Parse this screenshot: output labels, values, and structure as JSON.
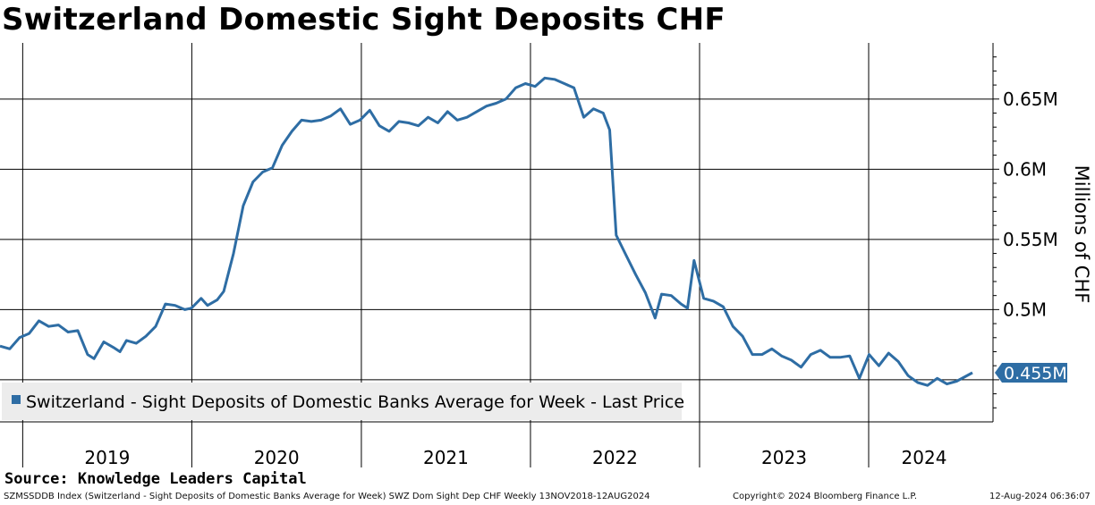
{
  "title": "Switzerland Domestic Sight Deposits CHF",
  "source_text": "Source: Knowledge Leaders Capital",
  "footer": {
    "ticker_desc": "SZMSSDDB Index (Switzerland - Sight Deposits of Domestic Banks Average for Week) SWZ Dom Sight Dep CHF  Weekly 13NOV2018-12AUG2024",
    "copyright": "Copyright© 2024 Bloomberg Finance L.P.",
    "timestamp": "12-Aug-2024 06:36:07"
  },
  "colors": {
    "line": "#2e6da4",
    "grid": "#000000",
    "legend_bg": "#ececec"
  },
  "chart_data": {
    "type": "line",
    "title": "Switzerland Domestic Sight Deposits CHF",
    "ylabel": "Millions of CHF",
    "xlabel": "",
    "x_range": [
      "2018-11-13",
      "2024-08-12"
    ],
    "ylim": [
      0.42,
      0.69
    ],
    "y_ticks": [
      {
        "value": 0.5,
        "label": "0.5M"
      },
      {
        "value": 0.55,
        "label": "0.55M"
      },
      {
        "value": 0.6,
        "label": "0.6M"
      },
      {
        "value": 0.65,
        "label": "0.65M"
      }
    ],
    "x_labels": [
      "2019",
      "2020",
      "2021",
      "2022",
      "2023",
      "2024"
    ],
    "legend": {
      "position": "bottom-left",
      "label": "Switzerland - Sight Deposits of Domestic Banks Average for Week - Last Price"
    },
    "last_value_label": "0.455M",
    "last_value": 0.455,
    "grid": true,
    "series": [
      {
        "name": "Switzerland - Sight Deposits of Domestic Banks Average for Week - Last Price",
        "points": [
          [
            "2018-11-13",
            0.474
          ],
          [
            "2018-12-04",
            0.472
          ],
          [
            "2018-12-25",
            0.48
          ],
          [
            "2019-01-15",
            0.483
          ],
          [
            "2019-02-05",
            0.492
          ],
          [
            "2019-02-26",
            0.488
          ],
          [
            "2019-03-19",
            0.489
          ],
          [
            "2019-04-09",
            0.484
          ],
          [
            "2019-04-30",
            0.485
          ],
          [
            "2019-05-21",
            0.468
          ],
          [
            "2019-06-04",
            0.465
          ],
          [
            "2019-06-25",
            0.477
          ],
          [
            "2019-07-16",
            0.473
          ],
          [
            "2019-07-30",
            0.47
          ],
          [
            "2019-08-13",
            0.478
          ],
          [
            "2019-09-03",
            0.476
          ],
          [
            "2019-09-24",
            0.481
          ],
          [
            "2019-10-15",
            0.488
          ],
          [
            "2019-11-05",
            0.504
          ],
          [
            "2019-11-26",
            0.503
          ],
          [
            "2019-12-17",
            0.5
          ],
          [
            "2019-12-31",
            0.501
          ],
          [
            "2020-01-21",
            0.508
          ],
          [
            "2020-02-04",
            0.503
          ],
          [
            "2020-02-25",
            0.507
          ],
          [
            "2020-03-10",
            0.513
          ],
          [
            "2020-03-31",
            0.54
          ],
          [
            "2020-04-21",
            0.574
          ],
          [
            "2020-05-12",
            0.591
          ],
          [
            "2020-06-02",
            0.598
          ],
          [
            "2020-06-23",
            0.601
          ],
          [
            "2020-07-14",
            0.617
          ],
          [
            "2020-08-04",
            0.627
          ],
          [
            "2020-08-25",
            0.635
          ],
          [
            "2020-09-15",
            0.634
          ],
          [
            "2020-10-06",
            0.635
          ],
          [
            "2020-10-27",
            0.638
          ],
          [
            "2020-11-17",
            0.643
          ],
          [
            "2020-12-08",
            0.632
          ],
          [
            "2020-12-29",
            0.635
          ],
          [
            "2021-01-19",
            0.642
          ],
          [
            "2021-02-09",
            0.631
          ],
          [
            "2021-03-02",
            0.627
          ],
          [
            "2021-03-23",
            0.634
          ],
          [
            "2021-04-13",
            0.633
          ],
          [
            "2021-05-04",
            0.631
          ],
          [
            "2021-05-25",
            0.637
          ],
          [
            "2021-06-15",
            0.633
          ],
          [
            "2021-07-06",
            0.641
          ],
          [
            "2021-07-27",
            0.635
          ],
          [
            "2021-08-17",
            0.637
          ],
          [
            "2021-09-07",
            0.641
          ],
          [
            "2021-09-28",
            0.645
          ],
          [
            "2021-10-19",
            0.647
          ],
          [
            "2021-11-09",
            0.65
          ],
          [
            "2021-11-30",
            0.658
          ],
          [
            "2021-12-21",
            0.661
          ],
          [
            "2022-01-11",
            0.659
          ],
          [
            "2022-02-01",
            0.665
          ],
          [
            "2022-02-22",
            0.664
          ],
          [
            "2022-03-15",
            0.661
          ],
          [
            "2022-04-05",
            0.658
          ],
          [
            "2022-04-26",
            0.637
          ],
          [
            "2022-05-17",
            0.643
          ],
          [
            "2022-06-07",
            0.64
          ],
          [
            "2022-06-21",
            0.628
          ],
          [
            "2022-07-05",
            0.553
          ],
          [
            "2022-07-26",
            0.539
          ],
          [
            "2022-08-16",
            0.525
          ],
          [
            "2022-09-06",
            0.512
          ],
          [
            "2022-09-27",
            0.494
          ],
          [
            "2022-10-11",
            0.511
          ],
          [
            "2022-11-01",
            0.51
          ],
          [
            "2022-11-22",
            0.504
          ],
          [
            "2022-12-06",
            0.501
          ],
          [
            "2022-12-20",
            0.535
          ],
          [
            "2023-01-10",
            0.508
          ],
          [
            "2023-01-31",
            0.506
          ],
          [
            "2023-02-21",
            0.502
          ],
          [
            "2023-03-14",
            0.488
          ],
          [
            "2023-04-04",
            0.481
          ],
          [
            "2023-04-25",
            0.468
          ],
          [
            "2023-05-16",
            0.468
          ],
          [
            "2023-06-06",
            0.472
          ],
          [
            "2023-06-27",
            0.467
          ],
          [
            "2023-07-18",
            0.464
          ],
          [
            "2023-08-08",
            0.459
          ],
          [
            "2023-08-29",
            0.468
          ],
          [
            "2023-09-19",
            0.471
          ],
          [
            "2023-10-10",
            0.466
          ],
          [
            "2023-10-31",
            0.466
          ],
          [
            "2023-11-21",
            0.467
          ],
          [
            "2023-12-12",
            0.451
          ],
          [
            "2024-01-02",
            0.468
          ],
          [
            "2024-01-23",
            0.46
          ],
          [
            "2024-02-13",
            0.469
          ],
          [
            "2024-03-05",
            0.463
          ],
          [
            "2024-03-26",
            0.453
          ],
          [
            "2024-04-16",
            0.448
          ],
          [
            "2024-05-07",
            0.446
          ],
          [
            "2024-05-28",
            0.451
          ],
          [
            "2024-06-18",
            0.447
          ],
          [
            "2024-07-09",
            0.449
          ],
          [
            "2024-08-12",
            0.455
          ]
        ]
      }
    ]
  }
}
